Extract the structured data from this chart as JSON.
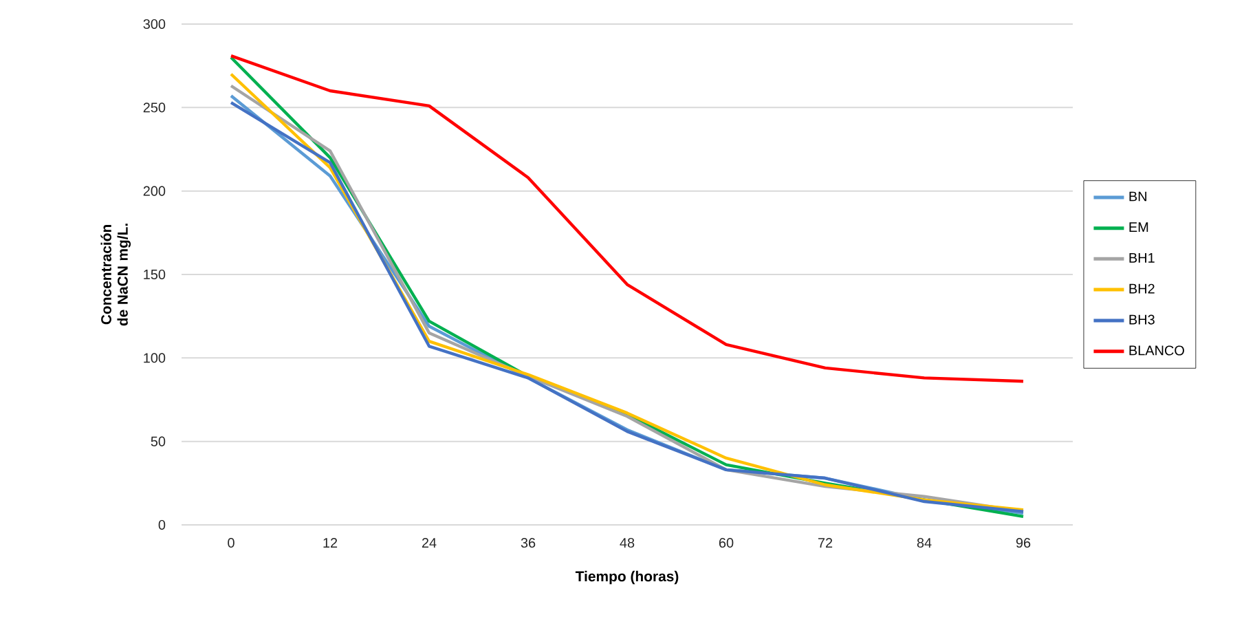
{
  "chart_data": {
    "type": "line",
    "xlabel": "Tiempo (horas)",
    "ylabel": "Concentración de NaCN mg/L.",
    "categories": [
      "0",
      "12",
      "24",
      "36",
      "48",
      "60",
      "72",
      "84",
      "96"
    ],
    "series": [
      {
        "name": "BN",
        "color": "#5b9bd5",
        "values": [
          257,
          209,
          119,
          88,
          57,
          33,
          28,
          15,
          7
        ]
      },
      {
        "name": "EM",
        "color": "#00b050",
        "values": [
          280,
          220,
          122,
          89,
          66,
          36,
          25,
          15,
          5
        ]
      },
      {
        "name": "BH1",
        "color": "#a5a5a5",
        "values": [
          263,
          224,
          115,
          89,
          65,
          33,
          23,
          17,
          8
        ]
      },
      {
        "name": "BH2",
        "color": "#ffc000",
        "values": [
          270,
          214,
          110,
          90,
          67,
          40,
          24,
          15,
          9
        ]
      },
      {
        "name": "BH3",
        "color": "#4472c4",
        "values": [
          253,
          217,
          107,
          88,
          56,
          33,
          28,
          14,
          8
        ]
      },
      {
        "name": "BLANCO",
        "color": "#ff0000",
        "values": [
          281,
          260,
          251,
          208,
          144,
          108,
          94,
          88,
          86
        ]
      }
    ],
    "ylim": [
      0,
      300
    ],
    "yticks": [
      0,
      50,
      100,
      150,
      200,
      250,
      300
    ],
    "grid": "y",
    "legend": "right",
    "marker": "none",
    "line_style": "solid"
  }
}
